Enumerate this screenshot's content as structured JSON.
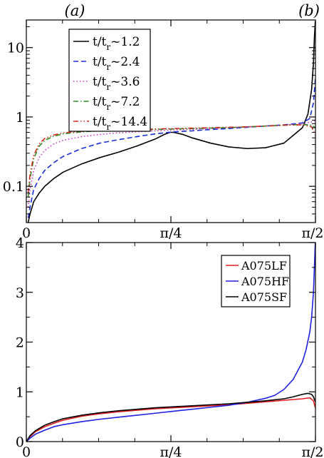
{
  "panel_labels": {
    "a": "(a)",
    "b": "(b)"
  },
  "chart_data": [
    {
      "type": "line",
      "title": "",
      "xlabel": "",
      "ylabel": "",
      "yscale": "log",
      "xlim": [
        0,
        1.5708
      ],
      "ylim": [
        0.03,
        25
      ],
      "x_ticks": [
        {
          "value": 0,
          "label": "0"
        },
        {
          "value": 0.7854,
          "label": "π/4"
        },
        {
          "value": 1.5708,
          "label": "π/2"
        }
      ],
      "y_ticks": [
        {
          "value": 0.1,
          "label": "0.1"
        },
        {
          "value": 1,
          "label": "1"
        },
        {
          "value": 10,
          "label": "10"
        }
      ],
      "legend_position": "top-left",
      "series": [
        {
          "name_main": "t/t",
          "name_sub": "r",
          "name_suffix": "~1.2",
          "color": "#000000",
          "dash": "solid",
          "x": [
            0.01,
            0.02,
            0.04,
            0.07,
            0.1,
            0.15,
            0.2,
            0.3,
            0.4,
            0.5,
            0.6,
            0.7,
            0.75,
            0.78,
            0.8,
            0.85,
            0.9,
            1.0,
            1.1,
            1.2,
            1.3,
            1.4,
            1.5,
            1.53,
            1.55,
            1.56,
            1.565,
            1.57
          ],
          "y": [
            0.03,
            0.04,
            0.06,
            0.08,
            0.1,
            0.13,
            0.16,
            0.21,
            0.26,
            0.31,
            0.38,
            0.48,
            0.56,
            0.6,
            0.6,
            0.56,
            0.5,
            0.42,
            0.37,
            0.35,
            0.36,
            0.42,
            0.7,
            1.1,
            2.5,
            6,
            14,
            24
          ]
        },
        {
          "name_main": "t/t",
          "name_sub": "r",
          "name_suffix": "~2.4",
          "color": "#1a2ed8",
          "dash": "dashed",
          "x": [
            0.01,
            0.02,
            0.04,
            0.07,
            0.1,
            0.15,
            0.2,
            0.3,
            0.4,
            0.5,
            0.6,
            0.7,
            0.8,
            0.9,
            1.0,
            1.1,
            1.2,
            1.3,
            1.4,
            1.5,
            1.54,
            1.56,
            1.57
          ],
          "y": [
            0.035,
            0.05,
            0.09,
            0.13,
            0.17,
            0.22,
            0.27,
            0.35,
            0.42,
            0.47,
            0.52,
            0.57,
            0.61,
            0.63,
            0.66,
            0.68,
            0.71,
            0.74,
            0.77,
            0.82,
            0.95,
            1.6,
            3.5
          ]
        },
        {
          "name_main": "t/t",
          "name_sub": "r",
          "name_suffix": "~3.6",
          "color": "#c838c8",
          "dash": "dotted",
          "x": [
            0.01,
            0.02,
            0.04,
            0.07,
            0.1,
            0.15,
            0.2,
            0.3,
            0.4,
            0.5,
            0.6,
            0.7,
            0.8,
            0.9,
            1.0,
            1.1,
            1.2,
            1.3,
            1.4,
            1.5,
            1.55,
            1.57
          ],
          "y": [
            0.05,
            0.09,
            0.17,
            0.26,
            0.33,
            0.41,
            0.46,
            0.52,
            0.56,
            0.59,
            0.61,
            0.63,
            0.65,
            0.66,
            0.68,
            0.7,
            0.72,
            0.74,
            0.76,
            0.8,
            0.85,
            0.9
          ]
        },
        {
          "name_main": "t/t",
          "name_sub": "r",
          "name_suffix": "~7.2",
          "color": "#2e8b22",
          "dash": "dashdot",
          "x": [
            0.01,
            0.02,
            0.04,
            0.07,
            0.1,
            0.15,
            0.2,
            0.3,
            0.4,
            0.5,
            0.6,
            0.7,
            0.8,
            0.9,
            1.0,
            1.1,
            1.2,
            1.3,
            1.4,
            1.5,
            1.55,
            1.57
          ],
          "y": [
            0.07,
            0.13,
            0.25,
            0.38,
            0.46,
            0.53,
            0.57,
            0.61,
            0.63,
            0.64,
            0.65,
            0.66,
            0.67,
            0.68,
            0.69,
            0.7,
            0.72,
            0.74,
            0.76,
            0.78,
            0.76,
            0.7
          ]
        },
        {
          "name_main": "t/t",
          "name_sub": "r",
          "name_suffix": "~14.4",
          "color": "#d42a1e",
          "dash": "dashdotdot",
          "x": [
            0.01,
            0.02,
            0.04,
            0.07,
            0.1,
            0.15,
            0.2,
            0.3,
            0.4,
            0.5,
            0.6,
            0.7,
            0.8,
            0.9,
            1.0,
            1.1,
            1.2,
            1.3,
            1.4,
            1.5,
            1.55,
            1.57
          ],
          "y": [
            0.08,
            0.15,
            0.28,
            0.41,
            0.49,
            0.55,
            0.59,
            0.62,
            0.64,
            0.65,
            0.66,
            0.67,
            0.68,
            0.69,
            0.7,
            0.71,
            0.72,
            0.74,
            0.76,
            0.77,
            0.72,
            0.55
          ]
        }
      ]
    },
    {
      "type": "line",
      "title": "",
      "xlabel": "",
      "ylabel": "",
      "yscale": "linear",
      "xlim": [
        0,
        1.5708
      ],
      "ylim": [
        0,
        4
      ],
      "x_ticks": [
        {
          "value": 0,
          "label": "0"
        },
        {
          "value": 0.7854,
          "label": "π/4"
        },
        {
          "value": 1.5708,
          "label": "π/2"
        }
      ],
      "y_ticks": [
        {
          "value": 0,
          "label": "0"
        },
        {
          "value": 1,
          "label": "1"
        },
        {
          "value": 2,
          "label": "2"
        },
        {
          "value": 3,
          "label": "3"
        },
        {
          "value": 4,
          "label": "4"
        }
      ],
      "legend_position": "top-right",
      "series": [
        {
          "name": "A075LF",
          "color": "#e01c1c",
          "x": [
            0,
            0.02,
            0.05,
            0.1,
            0.15,
            0.2,
            0.3,
            0.4,
            0.5,
            0.6,
            0.7,
            0.8,
            0.9,
            1.0,
            1.1,
            1.2,
            1.3,
            1.4,
            1.5,
            1.54,
            1.56,
            1.57
          ],
          "y": [
            0,
            0.1,
            0.2,
            0.3,
            0.37,
            0.43,
            0.51,
            0.56,
            0.6,
            0.63,
            0.66,
            0.68,
            0.7,
            0.72,
            0.74,
            0.77,
            0.8,
            0.83,
            0.86,
            0.88,
            0.82,
            0.68
          ]
        },
        {
          "name": "A075HF",
          "color": "#2020e6",
          "x": [
            0,
            0.02,
            0.05,
            0.1,
            0.15,
            0.2,
            0.3,
            0.4,
            0.5,
            0.6,
            0.7,
            0.8,
            0.9,
            1.0,
            1.1,
            1.2,
            1.3,
            1.35,
            1.4,
            1.45,
            1.5,
            1.52,
            1.54,
            1.55,
            1.56,
            1.565,
            1.57
          ],
          "y": [
            0,
            0.07,
            0.15,
            0.23,
            0.3,
            0.34,
            0.4,
            0.45,
            0.49,
            0.53,
            0.57,
            0.61,
            0.65,
            0.69,
            0.73,
            0.79,
            0.87,
            0.93,
            1.05,
            1.25,
            1.6,
            1.85,
            2.2,
            2.5,
            3.0,
            3.5,
            4.0
          ]
        },
        {
          "name": "A075SF",
          "color": "#000000",
          "x": [
            0,
            0.02,
            0.05,
            0.1,
            0.15,
            0.2,
            0.3,
            0.4,
            0.5,
            0.6,
            0.7,
            0.8,
            0.9,
            1.0,
            1.1,
            1.2,
            1.3,
            1.4,
            1.45,
            1.5,
            1.53,
            1.55,
            1.56,
            1.57
          ],
          "y": [
            0,
            0.12,
            0.22,
            0.33,
            0.4,
            0.46,
            0.53,
            0.58,
            0.62,
            0.65,
            0.68,
            0.7,
            0.72,
            0.74,
            0.76,
            0.79,
            0.82,
            0.86,
            0.9,
            0.95,
            0.97,
            0.95,
            0.9,
            0.8
          ]
        }
      ]
    }
  ]
}
